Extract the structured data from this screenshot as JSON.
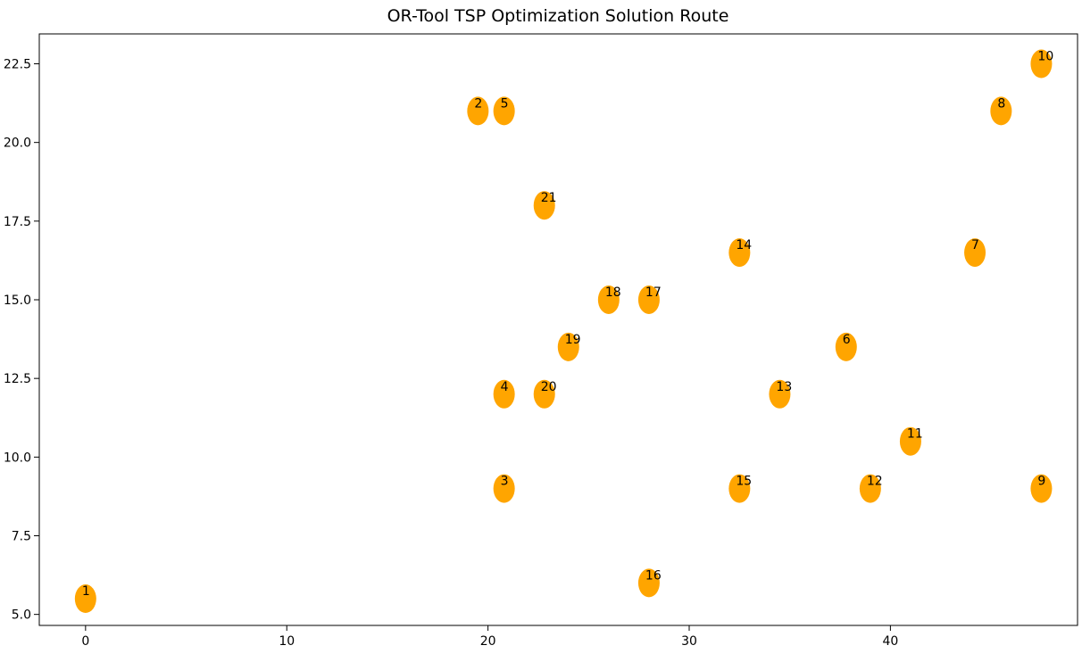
{
  "chart_data": {
    "type": "scatter",
    "title": "OR-Tool TSP Optimization Solution Route",
    "xlabel": "",
    "ylabel": "",
    "xlim": [
      -2.3,
      49.3
    ],
    "ylim": [
      4.65,
      23.45
    ],
    "xticks": [
      0,
      10,
      20,
      30,
      40
    ],
    "xtick_labels": [
      "0",
      "10",
      "20",
      "30",
      "40"
    ],
    "yticks": [
      5.0,
      7.5,
      10.0,
      12.5,
      15.0,
      17.5,
      20.0,
      22.5
    ],
    "ytick_labels": [
      "5.0",
      "7.5",
      "10.0",
      "12.5",
      "15.0",
      "17.5",
      "20.0",
      "22.5"
    ],
    "grid": false,
    "marker_color": "#ffa500",
    "points": [
      {
        "label": "1",
        "x": 0,
        "y": 5.5
      },
      {
        "label": "2",
        "x": 19.5,
        "y": 21
      },
      {
        "label": "3",
        "x": 20.8,
        "y": 9
      },
      {
        "label": "4",
        "x": 20.8,
        "y": 12
      },
      {
        "label": "5",
        "x": 20.8,
        "y": 21
      },
      {
        "label": "6",
        "x": 37.8,
        "y": 13.5
      },
      {
        "label": "7",
        "x": 44.2,
        "y": 16.5
      },
      {
        "label": "8",
        "x": 45.5,
        "y": 21
      },
      {
        "label": "9",
        "x": 47.5,
        "y": 9
      },
      {
        "label": "10",
        "x": 47.5,
        "y": 22.5
      },
      {
        "label": "11",
        "x": 41,
        "y": 10.5
      },
      {
        "label": "12",
        "x": 39,
        "y": 9
      },
      {
        "label": "13",
        "x": 34.5,
        "y": 12
      },
      {
        "label": "14",
        "x": 32.5,
        "y": 16.5
      },
      {
        "label": "15",
        "x": 32.5,
        "y": 9
      },
      {
        "label": "16",
        "x": 28,
        "y": 6
      },
      {
        "label": "17",
        "x": 28,
        "y": 15
      },
      {
        "label": "18",
        "x": 26,
        "y": 15
      },
      {
        "label": "19",
        "x": 24,
        "y": 13.5
      },
      {
        "label": "20",
        "x": 22.8,
        "y": 12
      },
      {
        "label": "21",
        "x": 22.8,
        "y": 18
      }
    ]
  }
}
